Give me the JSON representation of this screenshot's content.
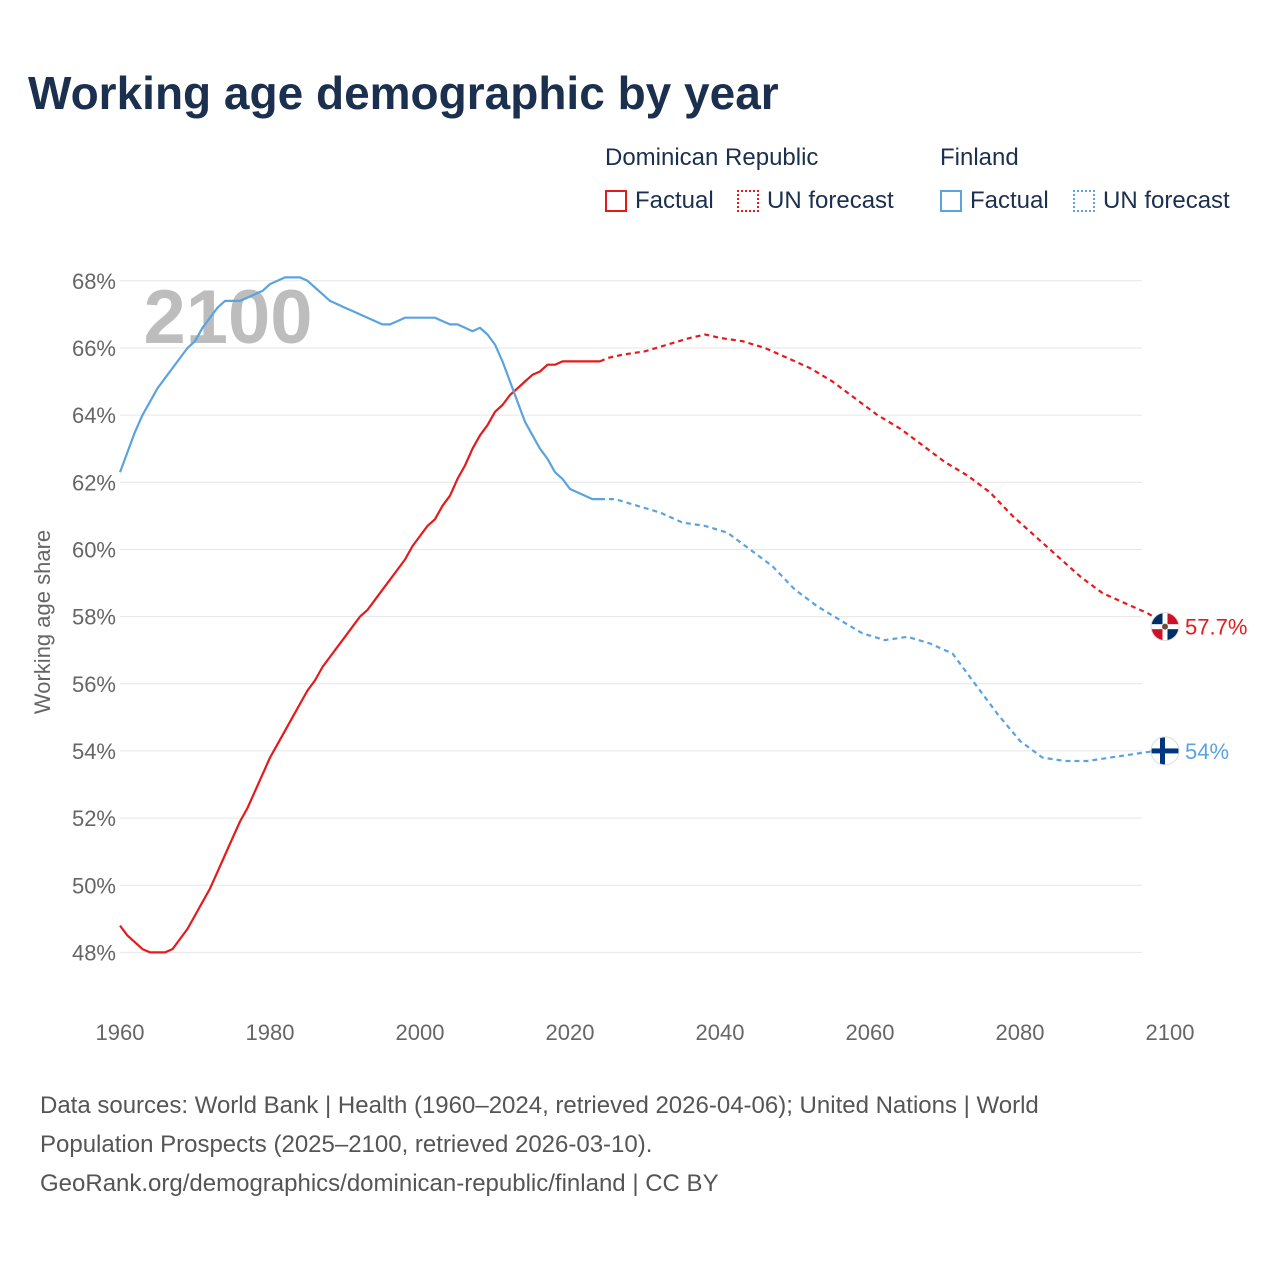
{
  "title": "Working age demographic by year",
  "legend": {
    "groups": [
      {
        "name": "Dominican Republic",
        "color": "#e41a1c",
        "items": [
          {
            "label": "Factual",
            "style": "solid"
          },
          {
            "label": "UN forecast",
            "style": "dotted"
          }
        ]
      },
      {
        "name": "Finland",
        "color": "#5ba3e0",
        "items": [
          {
            "label": "Factual",
            "style": "solid"
          },
          {
            "label": "UN forecast",
            "style": "dotted"
          }
        ]
      }
    ]
  },
  "footer": {
    "line1": "Data sources: World Bank | Health (1960–2024, retrieved 2026-04-06); United Nations | World",
    "line2": "Population Prospects (2025–2100, retrieved 2026-03-10).",
    "line3": "GeoRank.org/demographics/dominican-republic/finland | CC BY"
  },
  "chart_data": {
    "type": "line",
    "title": "Working age demographic by year",
    "ylabel": "Working age share",
    "xlabel": "",
    "year_watermark": "2100",
    "xlim": [
      1960,
      2100
    ],
    "ylim": [
      47,
      68.5
    ],
    "x_ticks": [
      1960,
      1980,
      2000,
      2020,
      2040,
      2060,
      2080,
      2100
    ],
    "x_tick_labels": [
      "1960",
      "1980",
      "2000",
      "2020",
      "2040",
      "2060",
      "2080",
      "2100"
    ],
    "y_ticks": [
      48,
      50,
      52,
      54,
      56,
      58,
      60,
      62,
      64,
      66,
      68
    ],
    "y_tick_labels": [
      "48%",
      "50%",
      "52%",
      "54%",
      "56%",
      "58%",
      "60%",
      "62%",
      "64%",
      "66%",
      "68%"
    ],
    "grid": true,
    "forecast_start": 2024,
    "series": [
      {
        "name": "Dominican Republic",
        "color": "#e41a1c",
        "end_label": "57.7%",
        "flag": "dominican-republic",
        "points": [
          [
            1960,
            48.8
          ],
          [
            1961,
            48.5
          ],
          [
            1962,
            48.3
          ],
          [
            1963,
            48.1
          ],
          [
            1964,
            48.0
          ],
          [
            1965,
            48.0
          ],
          [
            1966,
            48.0
          ],
          [
            1967,
            48.1
          ],
          [
            1968,
            48.4
          ],
          [
            1969,
            48.7
          ],
          [
            1970,
            49.1
          ],
          [
            1971,
            49.5
          ],
          [
            1972,
            49.9
          ],
          [
            1973,
            50.4
          ],
          [
            1974,
            50.9
          ],
          [
            1975,
            51.4
          ],
          [
            1976,
            51.9
          ],
          [
            1977,
            52.3
          ],
          [
            1978,
            52.8
          ],
          [
            1979,
            53.3
          ],
          [
            1980,
            53.8
          ],
          [
            1981,
            54.2
          ],
          [
            1982,
            54.6
          ],
          [
            1983,
            55.0
          ],
          [
            1984,
            55.4
          ],
          [
            1985,
            55.8
          ],
          [
            1986,
            56.1
          ],
          [
            1987,
            56.5
          ],
          [
            1988,
            56.8
          ],
          [
            1989,
            57.1
          ],
          [
            1990,
            57.4
          ],
          [
            1991,
            57.7
          ],
          [
            1992,
            58.0
          ],
          [
            1993,
            58.2
          ],
          [
            1994,
            58.5
          ],
          [
            1995,
            58.8
          ],
          [
            1996,
            59.1
          ],
          [
            1997,
            59.4
          ],
          [
            1998,
            59.7
          ],
          [
            1999,
            60.1
          ],
          [
            2000,
            60.4
          ],
          [
            2001,
            60.7
          ],
          [
            2002,
            60.9
          ],
          [
            2003,
            61.3
          ],
          [
            2004,
            61.6
          ],
          [
            2005,
            62.1
          ],
          [
            2006,
            62.5
          ],
          [
            2007,
            63.0
          ],
          [
            2008,
            63.4
          ],
          [
            2009,
            63.7
          ],
          [
            2010,
            64.1
          ],
          [
            2011,
            64.3
          ],
          [
            2012,
            64.6
          ],
          [
            2013,
            64.8
          ],
          [
            2014,
            65.0
          ],
          [
            2015,
            65.2
          ],
          [
            2016,
            65.3
          ],
          [
            2017,
            65.5
          ],
          [
            2018,
            65.5
          ],
          [
            2019,
            65.6
          ],
          [
            2020,
            65.6
          ],
          [
            2021,
            65.6
          ],
          [
            2022,
            65.6
          ],
          [
            2023,
            65.6
          ],
          [
            2024,
            65.6
          ],
          [
            2025,
            65.7
          ],
          [
            2027,
            65.8
          ],
          [
            2030,
            65.9
          ],
          [
            2033,
            66.1
          ],
          [
            2036,
            66.3
          ],
          [
            2038,
            66.4
          ],
          [
            2040,
            66.3
          ],
          [
            2043,
            66.2
          ],
          [
            2046,
            66.0
          ],
          [
            2049,
            65.7
          ],
          [
            2052,
            65.4
          ],
          [
            2055,
            65.0
          ],
          [
            2058,
            64.5
          ],
          [
            2061,
            64.0
          ],
          [
            2064,
            63.6
          ],
          [
            2067,
            63.1
          ],
          [
            2070,
            62.6
          ],
          [
            2073,
            62.2
          ],
          [
            2076,
            61.7
          ],
          [
            2079,
            61.0
          ],
          [
            2082,
            60.4
          ],
          [
            2085,
            59.8
          ],
          [
            2088,
            59.2
          ],
          [
            2091,
            58.7
          ],
          [
            2094,
            58.4
          ],
          [
            2097,
            58.1
          ],
          [
            2100,
            57.7
          ]
        ]
      },
      {
        "name": "Finland",
        "color": "#5ba3e0",
        "end_label": "54%",
        "flag": "finland",
        "points": [
          [
            1960,
            62.3
          ],
          [
            1961,
            62.9
          ],
          [
            1962,
            63.5
          ],
          [
            1963,
            64.0
          ],
          [
            1964,
            64.4
          ],
          [
            1965,
            64.8
          ],
          [
            1966,
            65.1
          ],
          [
            1967,
            65.4
          ],
          [
            1968,
            65.7
          ],
          [
            1969,
            66.0
          ],
          [
            1970,
            66.2
          ],
          [
            1971,
            66.6
          ],
          [
            1972,
            66.9
          ],
          [
            1973,
            67.2
          ],
          [
            1974,
            67.4
          ],
          [
            1975,
            67.4
          ],
          [
            1976,
            67.4
          ],
          [
            1977,
            67.5
          ],
          [
            1978,
            67.6
          ],
          [
            1979,
            67.7
          ],
          [
            1980,
            67.9
          ],
          [
            1981,
            68.0
          ],
          [
            1982,
            68.1
          ],
          [
            1983,
            68.1
          ],
          [
            1984,
            68.1
          ],
          [
            1985,
            68.0
          ],
          [
            1986,
            67.8
          ],
          [
            1987,
            67.6
          ],
          [
            1988,
            67.4
          ],
          [
            1989,
            67.3
          ],
          [
            1990,
            67.2
          ],
          [
            1991,
            67.1
          ],
          [
            1992,
            67.0
          ],
          [
            1993,
            66.9
          ],
          [
            1994,
            66.8
          ],
          [
            1995,
            66.7
          ],
          [
            1996,
            66.7
          ],
          [
            1997,
            66.8
          ],
          [
            1998,
            66.9
          ],
          [
            1999,
            66.9
          ],
          [
            2000,
            66.9
          ],
          [
            2001,
            66.9
          ],
          [
            2002,
            66.9
          ],
          [
            2003,
            66.8
          ],
          [
            2004,
            66.7
          ],
          [
            2005,
            66.7
          ],
          [
            2006,
            66.6
          ],
          [
            2007,
            66.5
          ],
          [
            2008,
            66.6
          ],
          [
            2009,
            66.4
          ],
          [
            2010,
            66.1
          ],
          [
            2011,
            65.6
          ],
          [
            2012,
            65.0
          ],
          [
            2013,
            64.4
          ],
          [
            2014,
            63.8
          ],
          [
            2015,
            63.4
          ],
          [
            2016,
            63.0
          ],
          [
            2017,
            62.7
          ],
          [
            2018,
            62.3
          ],
          [
            2019,
            62.1
          ],
          [
            2020,
            61.8
          ],
          [
            2021,
            61.7
          ],
          [
            2022,
            61.6
          ],
          [
            2023,
            61.5
          ],
          [
            2024,
            61.5
          ],
          [
            2026,
            61.5
          ],
          [
            2029,
            61.3
          ],
          [
            2032,
            61.1
          ],
          [
            2035,
            60.8
          ],
          [
            2038,
            60.7
          ],
          [
            2041,
            60.5
          ],
          [
            2044,
            60.0
          ],
          [
            2047,
            59.5
          ],
          [
            2050,
            58.8
          ],
          [
            2053,
            58.3
          ],
          [
            2056,
            57.9
          ],
          [
            2059,
            57.5
          ],
          [
            2062,
            57.3
          ],
          [
            2065,
            57.4
          ],
          [
            2068,
            57.2
          ],
          [
            2071,
            56.9
          ],
          [
            2074,
            56.0
          ],
          [
            2077,
            55.1
          ],
          [
            2080,
            54.3
          ],
          [
            2083,
            53.8
          ],
          [
            2086,
            53.7
          ],
          [
            2089,
            53.7
          ],
          [
            2092,
            53.8
          ],
          [
            2095,
            53.9
          ],
          [
            2098,
            54.0
          ],
          [
            2100,
            54.0
          ]
        ]
      }
    ]
  }
}
